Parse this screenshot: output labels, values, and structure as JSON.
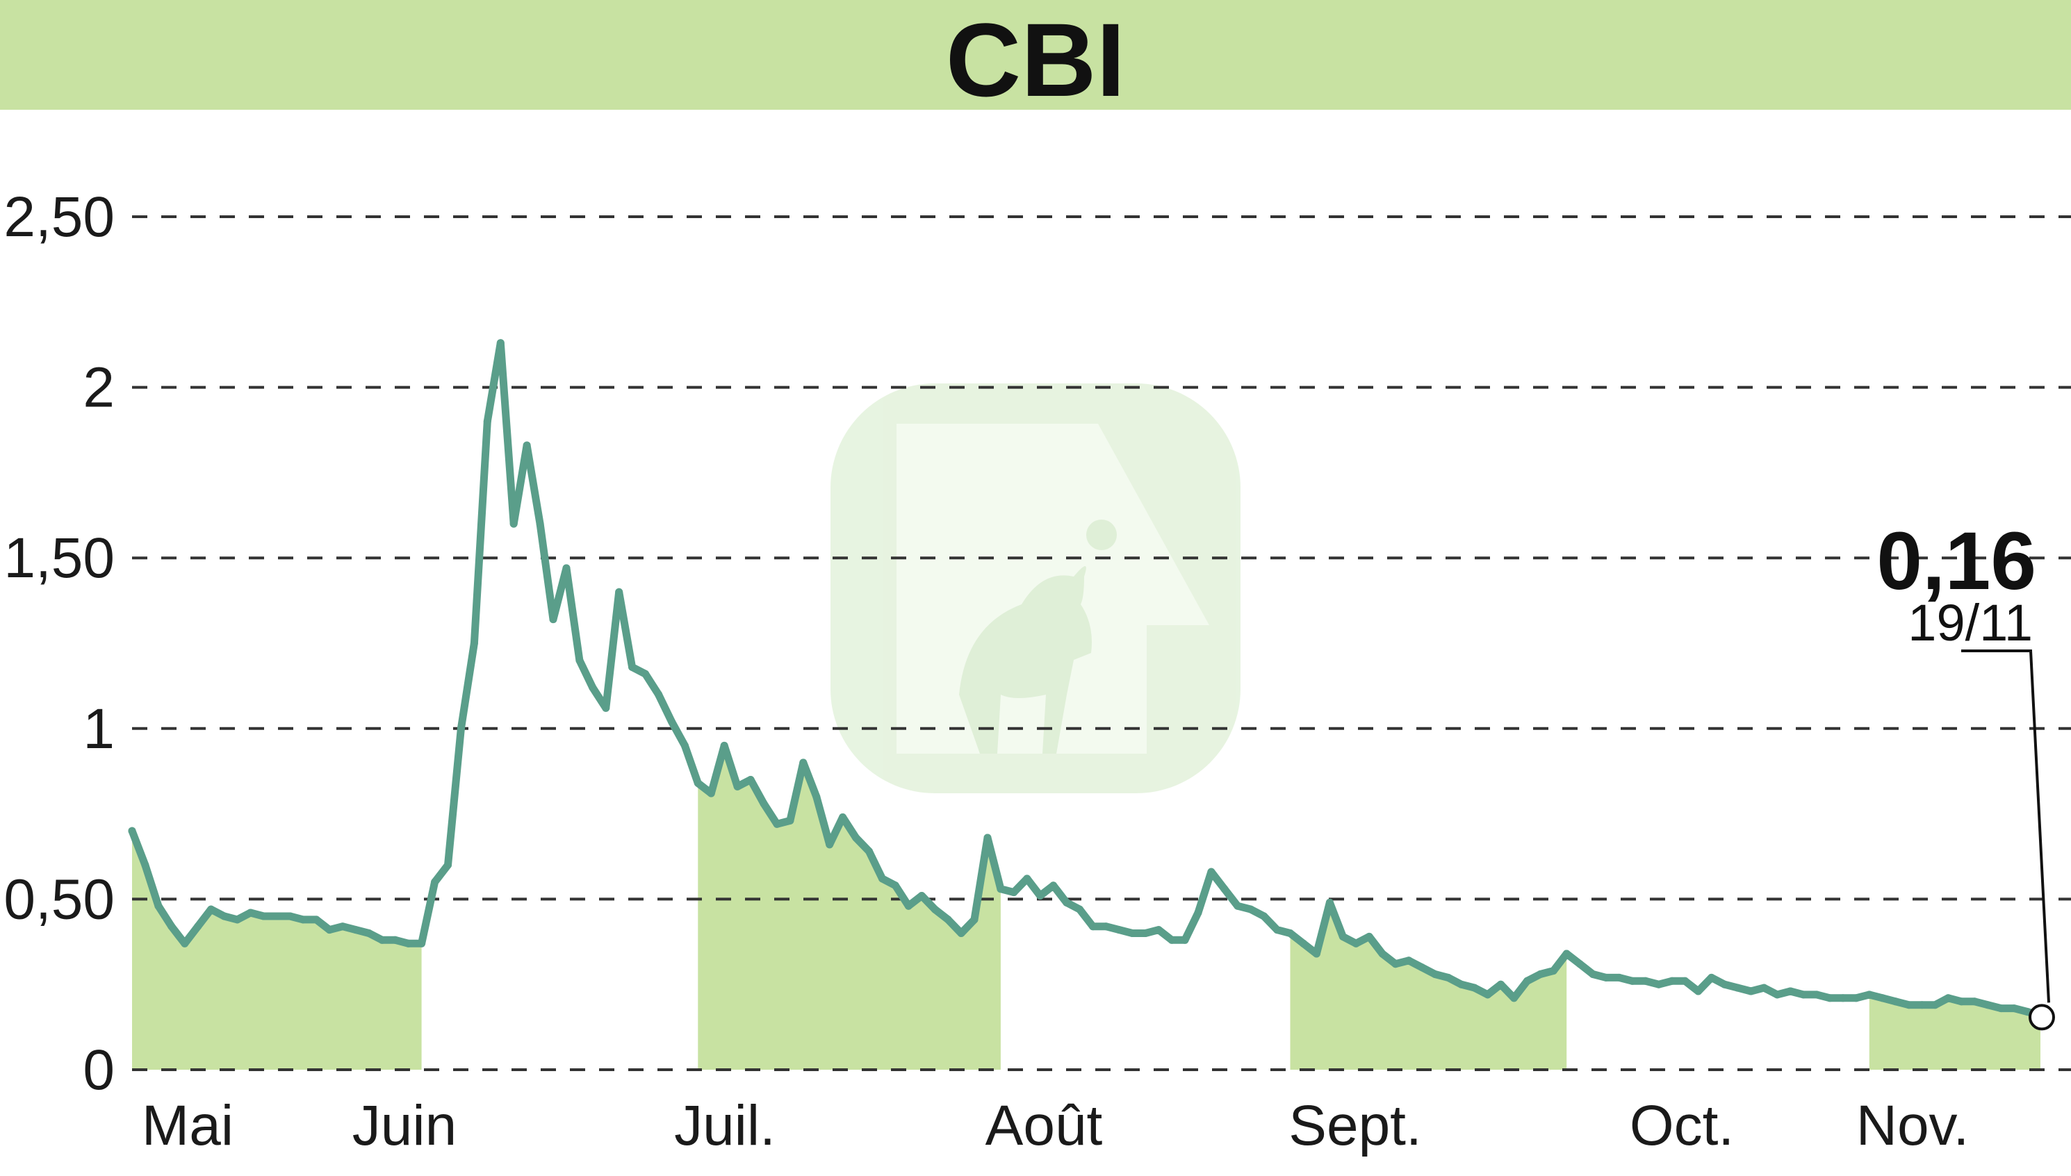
{
  "chart_data": {
    "type": "line",
    "title": "CBI",
    "xlabel": "",
    "ylabel": "",
    "ylim": [
      0,
      2.5
    ],
    "y_ticks": [
      {
        "value": 0,
        "label": "0"
      },
      {
        "value": 0.5,
        "label": "0,50"
      },
      {
        "value": 1,
        "label": "1"
      },
      {
        "value": 1.5,
        "label": "1,50"
      },
      {
        "value": 2,
        "label": "2"
      },
      {
        "value": 2.5,
        "label": "2,50"
      }
    ],
    "months": [
      {
        "label": "Mai",
        "start": 0,
        "end": 22
      },
      {
        "label": "Juin",
        "start": 22,
        "end": 43
      },
      {
        "label": "Juil.",
        "start": 43,
        "end": 66
      },
      {
        "label": "Août",
        "start": 66,
        "end": 88
      },
      {
        "label": "Sept.",
        "start": 88,
        "end": 109
      },
      {
        "label": "Oct.",
        "start": 109,
        "end": 132
      },
      {
        "label": "Nov.",
        "start": 132,
        "end": 145
      }
    ],
    "shaded_months": [
      0,
      2,
      4,
      6
    ],
    "grid": true,
    "last_value_label": "0,16",
    "last_date_label": "19/11",
    "colors": {
      "line": "#5a9e8a",
      "fill": "#c8e2a2",
      "header": "#c8e2a2",
      "grid": "#333333"
    },
    "series": [
      {
        "values": [
          0.7,
          0.6,
          0.48,
          0.42,
          0.37,
          0.42,
          0.47,
          0.45,
          0.44,
          0.46,
          0.45,
          0.45,
          0.45,
          0.44,
          0.44,
          0.41,
          0.42,
          0.41,
          0.4,
          0.38,
          0.38,
          0.37,
          0.37,
          0.55,
          0.6,
          1.0,
          1.25,
          1.9,
          2.13,
          1.6,
          1.83,
          1.6,
          1.32,
          1.47,
          1.2,
          1.12,
          1.06,
          1.4,
          1.18,
          1.16,
          1.1,
          1.02,
          0.95,
          0.84,
          0.81,
          0.95,
          0.83,
          0.85,
          0.78,
          0.72,
          0.73,
          0.9,
          0.8,
          0.66,
          0.74,
          0.68,
          0.64,
          0.56,
          0.54,
          0.48,
          0.51,
          0.47,
          0.44,
          0.4,
          0.44,
          0.68,
          0.53,
          0.52,
          0.56,
          0.51,
          0.54,
          0.49,
          0.47,
          0.42,
          0.42,
          0.41,
          0.4,
          0.4,
          0.41,
          0.38,
          0.38,
          0.46,
          0.58,
          0.53,
          0.48,
          0.47,
          0.45,
          0.41,
          0.4,
          0.37,
          0.34,
          0.49,
          0.39,
          0.37,
          0.39,
          0.34,
          0.31,
          0.32,
          0.3,
          0.28,
          0.27,
          0.25,
          0.24,
          0.22,
          0.25,
          0.21,
          0.26,
          0.28,
          0.29,
          0.34,
          0.31,
          0.28,
          0.27,
          0.27,
          0.26,
          0.26,
          0.25,
          0.26,
          0.26,
          0.23,
          0.27,
          0.25,
          0.24,
          0.23,
          0.24,
          0.22,
          0.23,
          0.22,
          0.22,
          0.21,
          0.21,
          0.21,
          0.22,
          0.21,
          0.2,
          0.19,
          0.19,
          0.19,
          0.21,
          0.2,
          0.2,
          0.19,
          0.18,
          0.18,
          0.17,
          0.16
        ]
      }
    ]
  }
}
